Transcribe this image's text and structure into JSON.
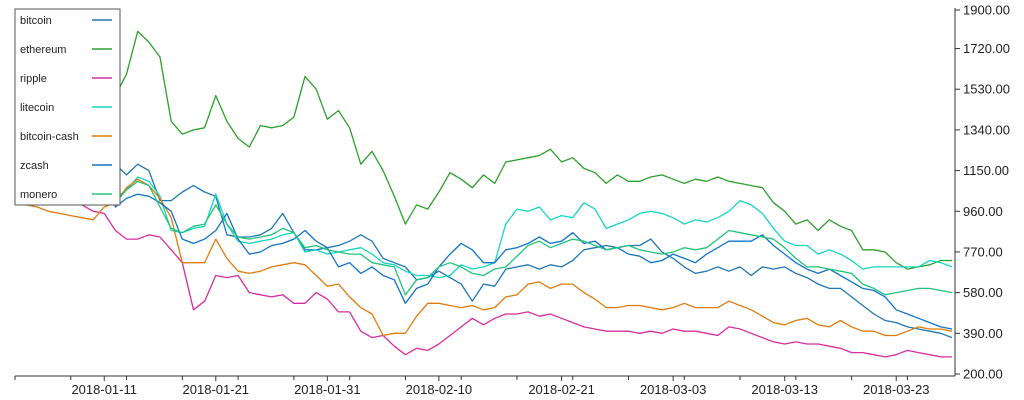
{
  "chart_data": {
    "type": "line",
    "title": "",
    "xlabel": "",
    "ylabel": "",
    "y_axis_position": "right",
    "legend_position": "top-left",
    "grid": false,
    "ylim": [
      200,
      1900
    ],
    "y_ticks": [
      "200.00",
      "390.00",
      "580.00",
      "770.00",
      "960.00",
      "1150.00",
      "1340.00",
      "1530.00",
      "1720.00",
      "1900.00"
    ],
    "x_ticks": [
      "2018-01-11",
      "2018-01-21",
      "2018-01-31",
      "2018-02-10",
      "2018-02-21",
      "2018-03-03",
      "2018-03-13",
      "2018-03-23"
    ],
    "x": [
      "2018-01-03",
      "2018-01-04",
      "2018-01-05",
      "2018-01-06",
      "2018-01-07",
      "2018-01-08",
      "2018-01-09",
      "2018-01-10",
      "2018-01-11",
      "2018-01-12",
      "2018-01-13",
      "2018-01-14",
      "2018-01-15",
      "2018-01-16",
      "2018-01-17",
      "2018-01-18",
      "2018-01-19",
      "2018-01-20",
      "2018-01-21",
      "2018-01-22",
      "2018-01-23",
      "2018-01-24",
      "2018-01-25",
      "2018-01-26",
      "2018-01-27",
      "2018-01-28",
      "2018-01-29",
      "2018-01-30",
      "2018-01-31",
      "2018-02-01",
      "2018-02-02",
      "2018-02-03",
      "2018-02-04",
      "2018-02-05",
      "2018-02-06",
      "2018-02-07",
      "2018-02-08",
      "2018-02-09",
      "2018-02-10",
      "2018-02-11",
      "2018-02-12",
      "2018-02-13",
      "2018-02-14",
      "2018-02-15",
      "2018-02-16",
      "2018-02-17",
      "2018-02-18",
      "2018-02-19",
      "2018-02-20",
      "2018-02-21",
      "2018-02-22",
      "2018-02-23",
      "2018-02-24",
      "2018-02-25",
      "2018-02-26",
      "2018-02-27",
      "2018-02-28",
      "2018-03-01",
      "2018-03-02",
      "2018-03-03",
      "2018-03-04",
      "2018-03-05",
      "2018-03-06",
      "2018-03-07",
      "2018-03-08",
      "2018-03-09",
      "2018-03-10",
      "2018-03-11",
      "2018-03-12",
      "2018-03-13",
      "2018-03-14",
      "2018-03-15",
      "2018-03-16",
      "2018-03-17",
      "2018-03-18",
      "2018-03-19",
      "2018-03-20",
      "2018-03-21",
      "2018-03-22",
      "2018-03-23",
      "2018-03-24",
      "2018-03-25",
      "2018-03-26",
      "2018-03-27",
      "2018-03-28"
    ],
    "series": [
      {
        "name": "bitcoin",
        "color": "#1f77b4",
        "values": [
          1290,
          1270,
          1250,
          1220,
          1200,
          1180,
          1160,
          1140,
          1130,
          1180,
          1130,
          1180,
          1150,
          1010,
          1010,
          1050,
          1080,
          1050,
          1030,
          850,
          840,
          840,
          850,
          880,
          950,
          860,
          780,
          780,
          790,
          800,
          820,
          850,
          820,
          740,
          720,
          700,
          640,
          650,
          680,
          650,
          620,
          540,
          620,
          610,
          690,
          700,
          710,
          690,
          710,
          700,
          730,
          780,
          790,
          800,
          790,
          800,
          800,
          830,
          770,
          740,
          700,
          670,
          680,
          700,
          680,
          700,
          660,
          700,
          690,
          700,
          670,
          650,
          620,
          600,
          600,
          560,
          520,
          480,
          450,
          440,
          420,
          410,
          400,
          390,
          370
        ]
      },
      {
        "name": "ethereum",
        "color": "#2ca02c",
        "values": [
          1700,
          1690,
          1670,
          1650,
          1640,
          1620,
          1610,
          1600,
          1590,
          1500,
          1600,
          1800,
          1750,
          1680,
          1380,
          1320,
          1340,
          1350,
          1500,
          1380,
          1300,
          1260,
          1360,
          1350,
          1360,
          1400,
          1590,
          1530,
          1390,
          1430,
          1350,
          1180,
          1240,
          1150,
          1030,
          900,
          990,
          970,
          1050,
          1140,
          1110,
          1070,
          1130,
          1090,
          1190,
          1200,
          1210,
          1220,
          1250,
          1190,
          1210,
          1160,
          1140,
          1090,
          1130,
          1100,
          1100,
          1120,
          1130,
          1110,
          1090,
          1110,
          1100,
          1120,
          1100,
          1090,
          1080,
          1070,
          1000,
          960,
          900,
          920,
          870,
          920,
          890,
          870,
          780,
          780,
          770,
          720,
          690,
          700,
          710,
          730,
          730
        ]
      },
      {
        "name": "ripple",
        "color": "#d62ea0",
        "values": [
          1100,
          1080,
          1060,
          1050,
          1030,
          1010,
          990,
          960,
          950,
          870,
          830,
          830,
          850,
          840,
          780,
          720,
          500,
          540,
          660,
          650,
          660,
          580,
          570,
          560,
          570,
          530,
          530,
          580,
          550,
          490,
          490,
          400,
          370,
          380,
          330,
          290,
          320,
          310,
          340,
          380,
          420,
          460,
          430,
          460,
          480,
          480,
          490,
          470,
          480,
          460,
          440,
          420,
          410,
          400,
          400,
          400,
          390,
          400,
          390,
          410,
          400,
          400,
          390,
          380,
          420,
          410,
          390,
          370,
          350,
          340,
          350,
          340,
          340,
          330,
          320,
          300,
          300,
          290,
          280,
          290,
          310,
          300,
          290,
          280,
          280
        ]
      },
      {
        "name": "litecoin",
        "color": "#17d6c3",
        "values": [
          1200,
          1180,
          1160,
          1140,
          1120,
          1100,
          1090,
          1080,
          1070,
          1020,
          1060,
          1120,
          1100,
          1030,
          870,
          860,
          880,
          890,
          1040,
          900,
          820,
          810,
          820,
          830,
          850,
          860,
          770,
          780,
          760,
          770,
          780,
          790,
          760,
          720,
          710,
          680,
          660,
          660,
          650,
          660,
          710,
          690,
          700,
          720,
          900,
          970,
          960,
          980,
          920,
          940,
          930,
          1000,
          970,
          880,
          900,
          920,
          950,
          960,
          950,
          930,
          900,
          920,
          910,
          930,
          960,
          1010,
          990,
          950,
          880,
          820,
          800,
          800,
          760,
          780,
          760,
          730,
          690,
          700,
          700,
          700,
          700,
          700,
          730,
          720,
          700
        ]
      },
      {
        "name": "bitcoin-cash",
        "color": "#e07b0f",
        "values": [
          1000,
          990,
          980,
          960,
          950,
          940,
          930,
          920,
          980,
          1000,
          1070,
          1110,
          1080,
          1020,
          930,
          720,
          720,
          720,
          830,
          740,
          680,
          670,
          680,
          700,
          710,
          720,
          710,
          660,
          610,
          620,
          560,
          510,
          480,
          380,
          390,
          390,
          470,
          530,
          530,
          520,
          510,
          520,
          500,
          510,
          560,
          570,
          620,
          630,
          600,
          620,
          620,
          580,
          550,
          510,
          510,
          520,
          520,
          510,
          500,
          510,
          530,
          510,
          510,
          510,
          540,
          520,
          500,
          470,
          440,
          430,
          450,
          460,
          430,
          420,
          450,
          420,
          400,
          400,
          380,
          380,
          400,
          420,
          410,
          410,
          400
        ]
      },
      {
        "name": "zcash",
        "color": "#1273c9",
        "values": [
          1230,
          1220,
          1200,
          1190,
          1180,
          1170,
          1160,
          1150,
          1140,
          980,
          1020,
          1040,
          1030,
          1000,
          960,
          830,
          810,
          830,
          870,
          950,
          830,
          760,
          770,
          800,
          810,
          830,
          870,
          820,
          790,
          700,
          720,
          670,
          700,
          660,
          640,
          530,
          600,
          620,
          700,
          760,
          810,
          780,
          720,
          720,
          780,
          790,
          810,
          840,
          810,
          820,
          860,
          810,
          820,
          780,
          790,
          760,
          750,
          720,
          730,
          760,
          740,
          720,
          760,
          790,
          820,
          820,
          820,
          850,
          800,
          760,
          720,
          690,
          670,
          690,
          660,
          630,
          600,
          590,
          560,
          500,
          480,
          460,
          440,
          420,
          410
        ]
      },
      {
        "name": "monero",
        "color": "#22c47a",
        "values": [
          1160,
          1140,
          1120,
          1100,
          1080,
          1060,
          1050,
          1040,
          1030,
          1000,
          1060,
          1100,
          1080,
          980,
          880,
          860,
          890,
          900,
          990,
          900,
          840,
          830,
          840,
          850,
          880,
          860,
          790,
          800,
          780,
          770,
          760,
          760,
          720,
          710,
          700,
          570,
          640,
          650,
          700,
          720,
          700,
          670,
          660,
          690,
          700,
          750,
          800,
          820,
          790,
          810,
          830,
          820,
          800,
          780,
          790,
          800,
          780,
          770,
          760,
          770,
          790,
          780,
          790,
          830,
          870,
          860,
          850,
          840,
          830,
          790,
          740,
          700,
          700,
          690,
          680,
          670,
          620,
          600,
          570,
          580,
          590,
          600,
          600,
          590,
          580
        ]
      }
    ]
  }
}
